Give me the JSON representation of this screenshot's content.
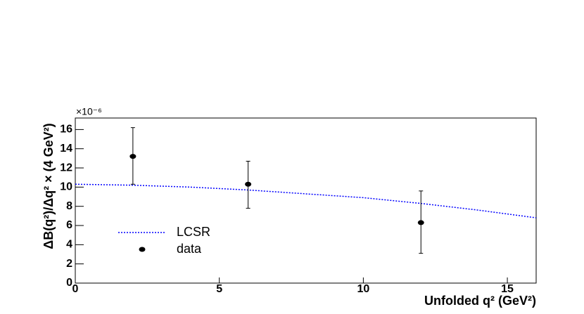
{
  "chart_data": {
    "type": "scatter",
    "x_label": "Unfolded q² (GeV²)",
    "y_label": "ΔB(q²)/Δq² × (4 GeV²)",
    "y_multiplier": "×10⁻⁶",
    "xlim": [
      0,
      16
    ],
    "xticks": [
      0,
      5,
      10,
      15
    ],
    "ylim": [
      0,
      17.2
    ],
    "yticks": [
      0,
      2,
      4,
      6,
      8,
      10,
      12,
      14,
      16
    ],
    "legend": "bottom-left",
    "series": [
      {
        "name": "LCSR",
        "type": "line",
        "color": "#0000ff",
        "x": [
          0,
          2,
          4,
          6,
          8,
          10,
          12,
          14,
          16
        ],
        "values": [
          10.3,
          10.2,
          10.0,
          9.7,
          9.3,
          8.9,
          8.3,
          7.6,
          6.8
        ]
      },
      {
        "name": "data",
        "type": "errorbar",
        "color": "#000000",
        "x": [
          2,
          6,
          12
        ],
        "values": [
          13.2,
          10.3,
          6.3
        ],
        "errors_high": [
          3.0,
          2.4,
          3.3
        ],
        "errors_low": [
          2.9,
          2.5,
          3.2
        ]
      }
    ]
  }
}
